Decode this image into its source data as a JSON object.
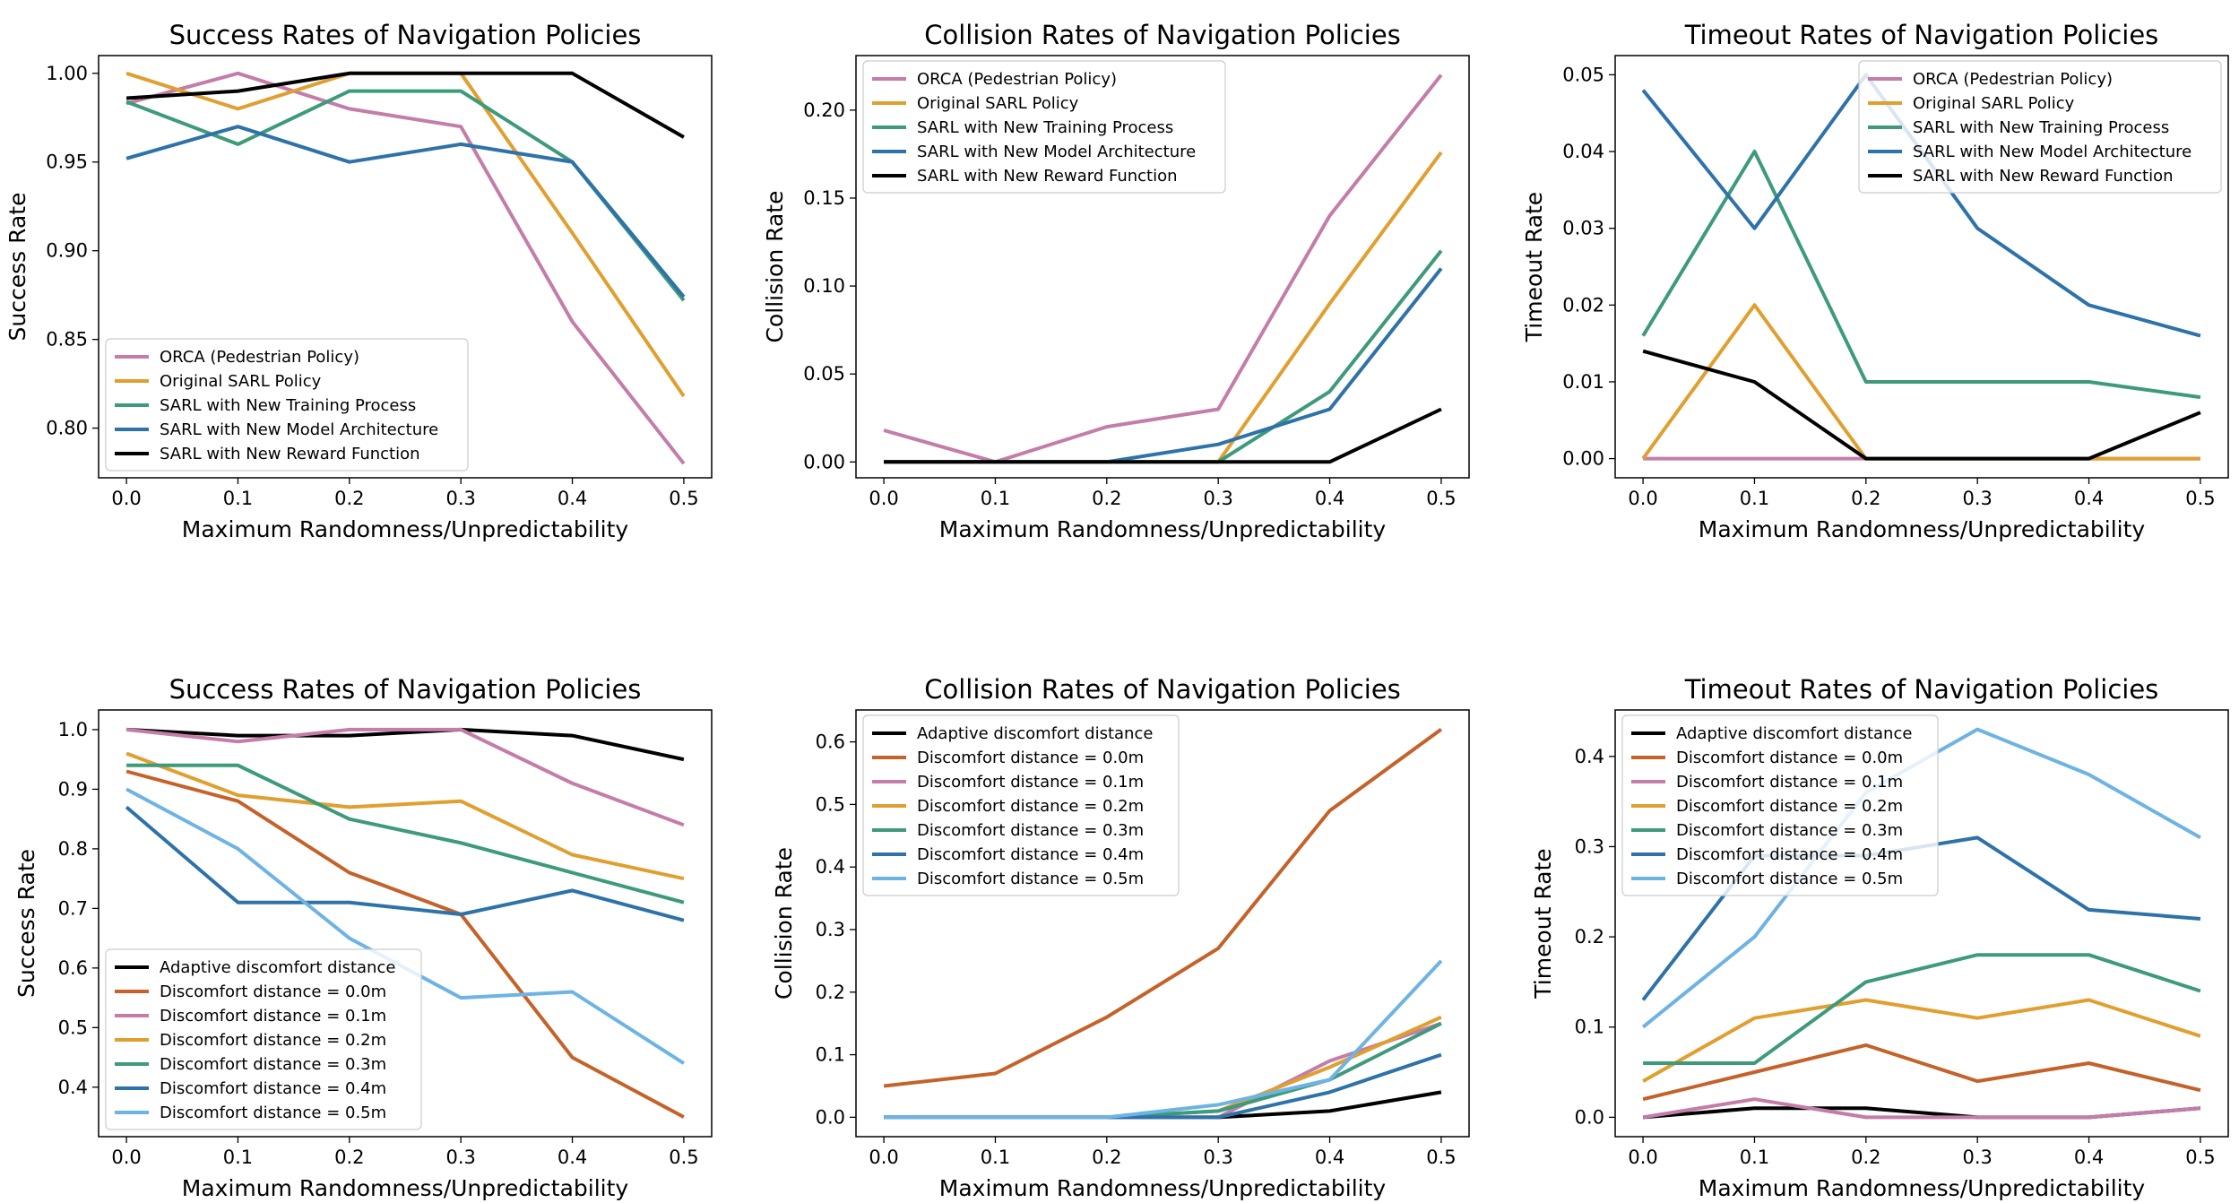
{
  "colors": {
    "pink": "#c37da8",
    "orange": "#e09f2f",
    "green": "#3d9a7a",
    "blue": "#2e72aa",
    "black": "#000000",
    "rust": "#c5622a",
    "lightblue": "#6db3e4"
  },
  "chart_data": [
    {
      "type": "line",
      "title": "Success Rates of Navigation Policies",
      "xlabel": "Maximum Randomness/Unpredictability",
      "ylabel": "Success Rate",
      "x": [
        0.0,
        0.1,
        0.2,
        0.3,
        0.4,
        0.5
      ],
      "xlim": [
        -0.025,
        0.525
      ],
      "ylim": [
        0.772,
        1.01
      ],
      "xticks": [
        0.0,
        0.1,
        0.2,
        0.3,
        0.4,
        0.5
      ],
      "xtick_labels": [
        "0.0",
        "0.1",
        "0.2",
        "0.3",
        "0.4",
        "0.5"
      ],
      "yticks": [
        0.8,
        0.85,
        0.9,
        0.95,
        1.0
      ],
      "ytick_labels": [
        "0.80",
        "0.85",
        "0.90",
        "0.95",
        "1.00"
      ],
      "legend": "lower-left",
      "series": [
        {
          "name": "ORCA (Pedestrian Policy)",
          "color": "pink",
          "values": [
            0.983,
            1.0,
            0.98,
            0.97,
            0.86,
            0.78
          ]
        },
        {
          "name": "Original SARL Policy",
          "color": "orange",
          "values": [
            1.0,
            0.98,
            1.0,
            1.0,
            0.91,
            0.818
          ]
        },
        {
          "name": "SARL with New Training Process",
          "color": "green",
          "values": [
            0.984,
            0.96,
            0.99,
            0.99,
            0.95,
            0.872
          ]
        },
        {
          "name": "SARL with New Model Architecture",
          "color": "blue",
          "values": [
            0.952,
            0.97,
            0.95,
            0.96,
            0.95,
            0.874
          ]
        },
        {
          "name": "SARL with New Reward Function",
          "color": "black",
          "values": [
            0.986,
            0.99,
            1.0,
            1.0,
            1.0,
            0.964
          ]
        }
      ]
    },
    {
      "type": "line",
      "title": "Collision Rates of Navigation Policies",
      "xlabel": "Maximum Randomness/Unpredictability",
      "ylabel": "Collision Rate",
      "x": [
        0.0,
        0.1,
        0.2,
        0.3,
        0.4,
        0.5
      ],
      "xlim": [
        -0.025,
        0.525
      ],
      "ylim": [
        -0.009,
        0.231
      ],
      "xticks": [
        0.0,
        0.1,
        0.2,
        0.3,
        0.4,
        0.5
      ],
      "xtick_labels": [
        "0.0",
        "0.1",
        "0.2",
        "0.3",
        "0.4",
        "0.5"
      ],
      "yticks": [
        0.0,
        0.05,
        0.1,
        0.15,
        0.2
      ],
      "ytick_labels": [
        "0.00",
        "0.05",
        "0.10",
        "0.15",
        "0.20"
      ],
      "legend": "upper-left",
      "series": [
        {
          "name": "ORCA (Pedestrian Policy)",
          "color": "pink",
          "values": [
            0.018,
            0.0,
            0.02,
            0.03,
            0.14,
            0.22
          ]
        },
        {
          "name": "Original SARL Policy",
          "color": "orange",
          "values": [
            0.0,
            0.0,
            0.0,
            0.0,
            0.09,
            0.176
          ]
        },
        {
          "name": "SARL with New Training Process",
          "color": "green",
          "values": [
            0.0,
            0.0,
            0.0,
            0.0,
            0.04,
            0.12
          ]
        },
        {
          "name": "SARL with New Model Architecture",
          "color": "blue",
          "values": [
            0.0,
            0.0,
            0.0,
            0.01,
            0.03,
            0.11
          ]
        },
        {
          "name": "SARL with New Reward Function",
          "color": "black",
          "values": [
            0.0,
            0.0,
            0.0,
            0.0,
            0.0,
            0.03
          ]
        }
      ]
    },
    {
      "type": "line",
      "title": "Timeout Rates of Navigation Policies",
      "xlabel": "Maximum Randomness/Unpredictability",
      "ylabel": "Timeout Rate",
      "x": [
        0.0,
        0.1,
        0.2,
        0.3,
        0.4,
        0.5
      ],
      "xlim": [
        -0.025,
        0.525
      ],
      "ylim": [
        -0.0025,
        0.0525
      ],
      "xticks": [
        0.0,
        0.1,
        0.2,
        0.3,
        0.4,
        0.5
      ],
      "xtick_labels": [
        "0.0",
        "0.1",
        "0.2",
        "0.3",
        "0.4",
        "0.5"
      ],
      "yticks": [
        0.0,
        0.01,
        0.02,
        0.03,
        0.04,
        0.05
      ],
      "ytick_labels": [
        "0.00",
        "0.01",
        "0.02",
        "0.03",
        "0.04",
        "0.05"
      ],
      "legend": "upper-right",
      "series": [
        {
          "name": "ORCA (Pedestrian Policy)",
          "color": "pink",
          "values": [
            0.0,
            0.0,
            0.0,
            0.0,
            0.0,
            0.0
          ]
        },
        {
          "name": "Original SARL Policy",
          "color": "orange",
          "values": [
            0.0,
            0.02,
            0.0,
            0.0,
            0.0,
            0.0
          ]
        },
        {
          "name": "SARL with New Training Process",
          "color": "green",
          "values": [
            0.016,
            0.04,
            0.01,
            0.01,
            0.01,
            0.008
          ]
        },
        {
          "name": "SARL with New Model Architecture",
          "color": "blue",
          "values": [
            0.048,
            0.03,
            0.05,
            0.03,
            0.02,
            0.016
          ]
        },
        {
          "name": "SARL with New Reward Function",
          "color": "black",
          "values": [
            0.014,
            0.01,
            0.0,
            0.0,
            0.0,
            0.006
          ]
        }
      ]
    },
    {
      "type": "line",
      "title": "Success Rates of Navigation Policies",
      "xlabel": "Maximum Randomness/Unpredictability",
      "ylabel": "Success Rate",
      "x": [
        0.0,
        0.1,
        0.2,
        0.3,
        0.4,
        0.5
      ],
      "xlim": [
        -0.025,
        0.525
      ],
      "ylim": [
        0.317,
        1.033
      ],
      "xticks": [
        0.0,
        0.1,
        0.2,
        0.3,
        0.4,
        0.5
      ],
      "xtick_labels": [
        "0.0",
        "0.1",
        "0.2",
        "0.3",
        "0.4",
        "0.5"
      ],
      "yticks": [
        0.4,
        0.5,
        0.6,
        0.7,
        0.8,
        0.9,
        1.0
      ],
      "ytick_labels": [
        "0.4",
        "0.5",
        "0.6",
        "0.7",
        "0.8",
        "0.9",
        "1.0"
      ],
      "legend": "lower-left",
      "series": [
        {
          "name": "Adaptive discomfort distance",
          "color": "black",
          "values": [
            1.0,
            0.99,
            0.99,
            1.0,
            0.99,
            0.95
          ]
        },
        {
          "name": "Discomfort distance = 0.0m",
          "color": "rust",
          "values": [
            0.93,
            0.88,
            0.76,
            0.69,
            0.45,
            0.35
          ]
        },
        {
          "name": "Discomfort distance = 0.1m",
          "color": "pink",
          "values": [
            1.0,
            0.98,
            1.0,
            1.0,
            0.91,
            0.84
          ]
        },
        {
          "name": "Discomfort distance = 0.2m",
          "color": "orange",
          "values": [
            0.96,
            0.89,
            0.87,
            0.88,
            0.79,
            0.75
          ]
        },
        {
          "name": "Discomfort distance = 0.3m",
          "color": "green",
          "values": [
            0.94,
            0.94,
            0.85,
            0.81,
            0.76,
            0.71
          ]
        },
        {
          "name": "Discomfort distance = 0.4m",
          "color": "blue",
          "values": [
            0.87,
            0.71,
            0.71,
            0.69,
            0.73,
            0.68
          ]
        },
        {
          "name": "Discomfort distance = 0.5m",
          "color": "lightblue",
          "values": [
            0.9,
            0.8,
            0.65,
            0.55,
            0.56,
            0.44
          ]
        }
      ]
    },
    {
      "type": "line",
      "title": "Collision Rates of Navigation Policies",
      "xlabel": "Maximum Randomness/Unpredictability",
      "ylabel": "Collision Rate",
      "x": [
        0.0,
        0.1,
        0.2,
        0.3,
        0.4,
        0.5
      ],
      "xlim": [
        -0.025,
        0.525
      ],
      "ylim": [
        -0.031,
        0.651
      ],
      "xticks": [
        0.0,
        0.1,
        0.2,
        0.3,
        0.4,
        0.5
      ],
      "xtick_labels": [
        "0.0",
        "0.1",
        "0.2",
        "0.3",
        "0.4",
        "0.5"
      ],
      "yticks": [
        0.0,
        0.1,
        0.2,
        0.3,
        0.4,
        0.5,
        0.6
      ],
      "ytick_labels": [
        "0.0",
        "0.1",
        "0.2",
        "0.3",
        "0.4",
        "0.5",
        "0.6"
      ],
      "legend": "upper-left",
      "series": [
        {
          "name": "Adaptive discomfort distance",
          "color": "black",
          "values": [
            0.0,
            0.0,
            0.0,
            0.0,
            0.01,
            0.04
          ]
        },
        {
          "name": "Discomfort distance = 0.0m",
          "color": "rust",
          "values": [
            0.05,
            0.07,
            0.16,
            0.27,
            0.49,
            0.62
          ]
        },
        {
          "name": "Discomfort distance = 0.1m",
          "color": "pink",
          "values": [
            0.0,
            0.0,
            0.0,
            0.0,
            0.09,
            0.15
          ]
        },
        {
          "name": "Discomfort distance = 0.2m",
          "color": "orange",
          "values": [
            0.0,
            0.0,
            0.0,
            0.01,
            0.08,
            0.16
          ]
        },
        {
          "name": "Discomfort distance = 0.3m",
          "color": "green",
          "values": [
            0.0,
            0.0,
            0.0,
            0.01,
            0.06,
            0.15
          ]
        },
        {
          "name": "Discomfort distance = 0.4m",
          "color": "blue",
          "values": [
            0.0,
            0.0,
            0.0,
            0.0,
            0.04,
            0.1
          ]
        },
        {
          "name": "Discomfort distance = 0.5m",
          "color": "lightblue",
          "values": [
            0.0,
            0.0,
            0.0,
            0.02,
            0.06,
            0.25
          ]
        }
      ]
    },
    {
      "type": "line",
      "title": "Timeout Rates of Navigation Policies",
      "xlabel": "Maximum Randomness/Unpredictability",
      "ylabel": "Timeout Rate",
      "x": [
        0.0,
        0.1,
        0.2,
        0.3,
        0.4,
        0.5
      ],
      "xlim": [
        -0.025,
        0.525
      ],
      "ylim": [
        -0.0215,
        0.4515
      ],
      "xticks": [
        0.0,
        0.1,
        0.2,
        0.3,
        0.4,
        0.5
      ],
      "xtick_labels": [
        "0.0",
        "0.1",
        "0.2",
        "0.3",
        "0.4",
        "0.5"
      ],
      "yticks": [
        0.0,
        0.1,
        0.2,
        0.3,
        0.4
      ],
      "ytick_labels": [
        "0.0",
        "0.1",
        "0.2",
        "0.3",
        "0.4"
      ],
      "legend": "upper-left",
      "series": [
        {
          "name": "Adaptive discomfort distance",
          "color": "black",
          "values": [
            0.0,
            0.01,
            0.01,
            0.0,
            0.0,
            0.01
          ]
        },
        {
          "name": "Discomfort distance = 0.0m",
          "color": "rust",
          "values": [
            0.02,
            0.05,
            0.08,
            0.04,
            0.06,
            0.03
          ]
        },
        {
          "name": "Discomfort distance = 0.1m",
          "color": "pink",
          "values": [
            0.0,
            0.02,
            0.0,
            0.0,
            0.0,
            0.01
          ]
        },
        {
          "name": "Discomfort distance = 0.2m",
          "color": "orange",
          "values": [
            0.04,
            0.11,
            0.13,
            0.11,
            0.13,
            0.09
          ]
        },
        {
          "name": "Discomfort distance = 0.3m",
          "color": "green",
          "values": [
            0.06,
            0.06,
            0.15,
            0.18,
            0.18,
            0.14
          ]
        },
        {
          "name": "Discomfort distance = 0.4m",
          "color": "blue",
          "values": [
            0.13,
            0.29,
            0.29,
            0.31,
            0.23,
            0.22
          ]
        },
        {
          "name": "Discomfort distance = 0.5m",
          "color": "lightblue",
          "values": [
            0.1,
            0.2,
            0.36,
            0.43,
            0.38,
            0.31
          ]
        }
      ]
    }
  ]
}
